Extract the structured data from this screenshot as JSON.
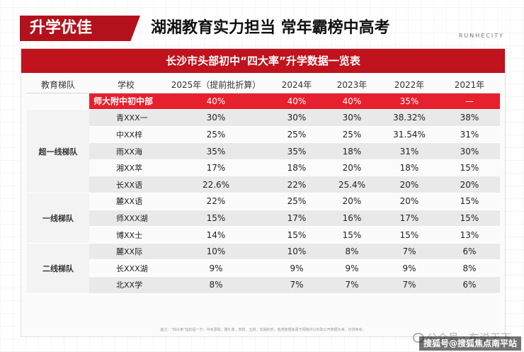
{
  "header": {
    "badge": "升学优佳",
    "headline": "湖湘教育实力担当 常年霸榜中高考",
    "brand": "RUNHECITY"
  },
  "table_title": "长沙市头部初中“四大率”升学数据一览表",
  "columns": [
    "教育梯队",
    "学校",
    "2025年（提前批折算）",
    "2024年",
    "2023年",
    "2022年",
    "2021年"
  ],
  "highlight": {
    "school": "师大附中初中部",
    "values": [
      "40%",
      "40%",
      "40%",
      "35%",
      "—"
    ]
  },
  "tiers": [
    {
      "name": "超一线梯队",
      "rows": [
        {
          "school": "青XXX一",
          "values": [
            "30%",
            "30%",
            "30%",
            "38.32%",
            "38%"
          ]
        },
        {
          "school": "中XX梓",
          "values": [
            "25%",
            "25%",
            "25%",
            "31.54%",
            "31%"
          ]
        },
        {
          "school": "雨XX海",
          "values": [
            "35%",
            "35%",
            "18%",
            "31%",
            "30%"
          ]
        },
        {
          "school": "湘XX萃",
          "values": [
            "17%",
            "18%",
            "20%",
            "18%",
            "15%"
          ]
        },
        {
          "school": "长XX语",
          "values": [
            "22.6%",
            "22%",
            "25.4%",
            "20%",
            "20%"
          ]
        }
      ]
    },
    {
      "name": "一线梯队",
      "rows": [
        {
          "school": "麓XX语",
          "values": [
            "22%",
            "25%",
            "20%",
            "20%",
            "15%"
          ]
        },
        {
          "school": "师XXX湖",
          "values": [
            "15%",
            "17%",
            "16%",
            "17%",
            "15%"
          ]
        },
        {
          "school": "博XX士",
          "values": [
            "14%",
            "15%",
            "15%",
            "15%",
            "13%"
          ]
        }
      ]
    },
    {
      "name": "二线梯队",
      "rows": [
        {
          "school": "麓XX际",
          "values": [
            "10%",
            "10%",
            "8%",
            "7%",
            "6%"
          ]
        },
        {
          "school": "长XXX湖",
          "values": [
            "9%",
            "9%",
            "9%",
            "9%",
            "8%"
          ]
        },
        {
          "school": "北XX学",
          "values": [
            "8%",
            "7%",
            "7%",
            "7%",
            "6%"
          ]
        }
      ]
    }
  ],
  "footnote": "备注：“四大率”指的是一方：中考录取，雅礼率、四校、五校，加湖依然，各类数据来源于网络并以实际公开数据为准，仅供参考。",
  "watermark": "公众号 · 布说天下",
  "credit": "搜狐号@搜狐焦点南平站"
}
